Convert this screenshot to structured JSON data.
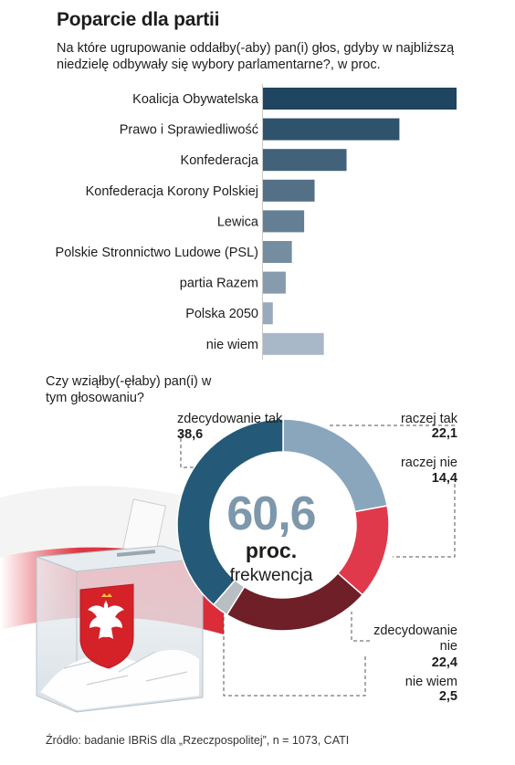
{
  "title": "Poparcie dla partii",
  "question_vote": "Na które ugrupowanie oddałby(-aby) pan(i) głos, gdyby w najbliższą niedzielę odbywały się wybory parlamentarne?, w proc.",
  "question_turnout": "Czy wziąłby(-ęłaby) pan(i) w tym głosowaniu?",
  "source": "Źródło: badanie IBRiS dla „Rzeczpospolitej”, n = 1073, CATI",
  "turnout": {
    "value": "60,6",
    "unit": "proc.",
    "caption": "frekwencja"
  },
  "donut_labels": {
    "zt_label": "zdecydowanie tak",
    "zt_value": "38,6",
    "rt_label": "raczej tak",
    "rt_value": "22,1",
    "rn_label": "raczej nie",
    "rn_value": "14,4",
    "zn_label": "zdecydowanie nie",
    "zn_value": "22,4",
    "nw_label": "nie wiem",
    "nw_value": "2,5"
  },
  "colors": {
    "bar_dark": "#1f4560",
    "bar_light": "#a9b8c8",
    "zdecydowanie_tak": "#245a78",
    "raczej_tak": "#8aa6bc",
    "raczej_nie": "#e0394b",
    "zdecydowanie_nie": "#6e1f28",
    "nie_wiem": "#b9bec2"
  },
  "chart_data": [
    {
      "type": "bar",
      "orientation": "horizontal",
      "categories": [
        "Koalicja Obywatelska",
        "Prawo i Sprawiedliwość",
        "Konfederacja",
        "Konfederacja Korony Polskiej",
        "Lewica",
        "Polskie Stronnictwo Ludowe (PSL)",
        "partia Razem",
        "Polska 2050",
        "nie wiem"
      ],
      "values": [
        31.5,
        22.2,
        13.6,
        8.4,
        6.7,
        4.7,
        3.7,
        1.6,
        9.9
      ],
      "value_labels_shown": false,
      "unit": "proc."
    },
    {
      "type": "pie",
      "variant": "donut",
      "categories": [
        "zdecydowanie tak",
        "raczej tak",
        "raczej nie",
        "zdecydowanie nie",
        "nie wiem"
      ],
      "values": [
        38.6,
        22.1,
        14.4,
        22.4,
        2.5
      ]
    }
  ]
}
